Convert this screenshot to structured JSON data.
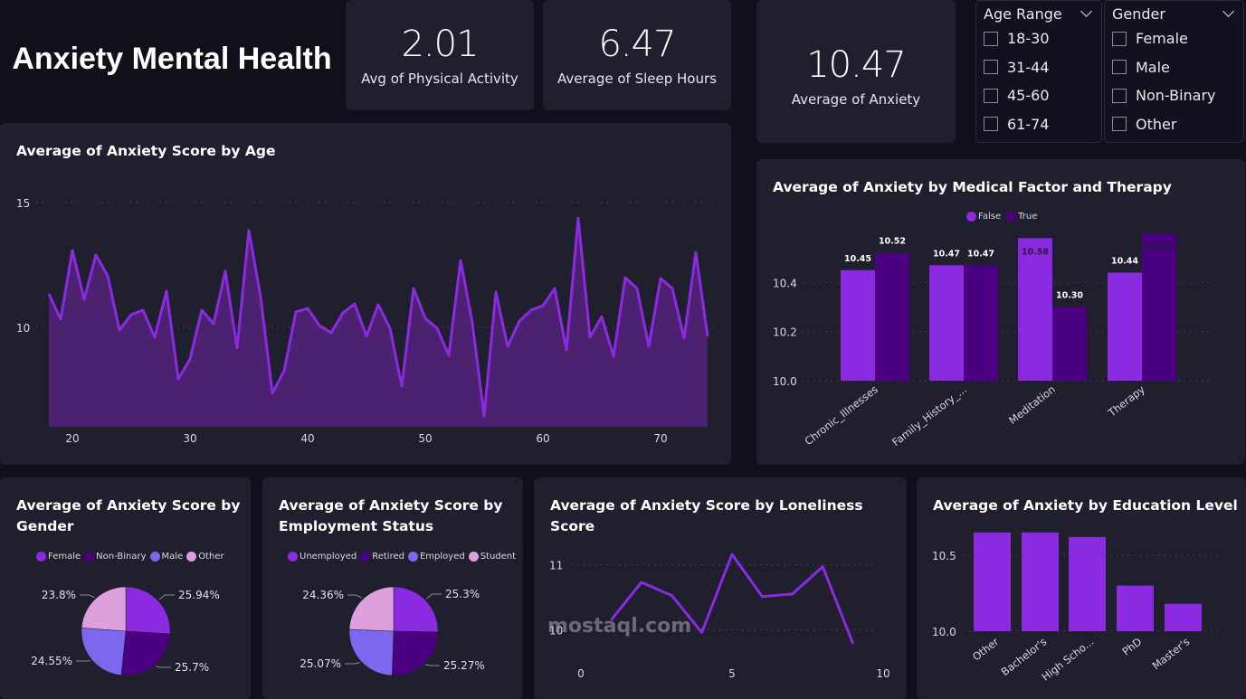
{
  "header": {
    "title": "Anxiety Mental Health"
  },
  "kpis": [
    {
      "value": "2.01",
      "label": "Avg of Physical Activity"
    },
    {
      "value": "6.47",
      "label": "Average of Sleep Hours"
    },
    {
      "value": "10.47",
      "label": "Average of Anxiety"
    }
  ],
  "slicers": {
    "age_range": {
      "title": "Age Range",
      "options": [
        "18-30",
        "31-44",
        "45-60",
        "61-74"
      ]
    },
    "gender": {
      "title": "Gender",
      "options": [
        "Female",
        "Male",
        "Non-Binary",
        "Other"
      ]
    }
  },
  "colors": {
    "purple": "#8a2be2",
    "dark_purple": "#4b0082",
    "lavender": "#7b68ee",
    "pink": "#dda0dd",
    "area_fill": "#4b2170",
    "card": "#1f1f2e",
    "bg": "#10101b"
  },
  "watermark": {
    "text": "mostaql.com"
  },
  "chart_data": [
    {
      "id": "age",
      "type": "area",
      "title": "Average of Anxiety Score by Age",
      "xlabel": "",
      "ylabel": "",
      "x_ticks": [
        "20",
        "30",
        "40",
        "50",
        "60",
        "70"
      ],
      "y_ticks": [
        "10",
        "15"
      ],
      "ylim": [
        6,
        15
      ],
      "xlim": [
        18,
        74
      ],
      "x": [
        18,
        19,
        20,
        21,
        22,
        23,
        24,
        25,
        26,
        27,
        28,
        29,
        30,
        31,
        32,
        33,
        34,
        35,
        36,
        37,
        38,
        39,
        40,
        41,
        42,
        43,
        44,
        45,
        46,
        47,
        48,
        49,
        50,
        51,
        52,
        53,
        54,
        55,
        56,
        57,
        58,
        59,
        60,
        61,
        62,
        63,
        64,
        65,
        66,
        67,
        68,
        69,
        70,
        71,
        72,
        73,
        74
      ],
      "values": [
        11.34,
        10.33,
        13.08,
        11.12,
        12.9,
        12.07,
        9.89,
        10.51,
        10.69,
        9.6,
        11.45,
        7.93,
        8.73,
        10.69,
        10.14,
        12.25,
        9.17,
        13.88,
        11.23,
        7.36,
        8.26,
        10.62,
        10.76,
        10.07,
        9.78,
        10.58,
        10.94,
        9.64,
        10.91,
        9.96,
        7.64,
        11.56,
        10.36,
        9.96,
        8.88,
        12.68,
        10.18,
        6.45,
        11.41,
        9.24,
        10.25,
        10.69,
        10.87,
        11.56,
        9.09,
        14.38,
        9.6,
        10.43,
        8.84,
        11.99,
        11.56,
        9.24,
        11.96,
        11.56,
        9.56,
        13.0,
        9.64
      ],
      "grid": true
    },
    {
      "id": "medical",
      "type": "bar",
      "title": "Average of Anxiety by Medical Factor and Therapy",
      "categories": [
        "Chronic_Illnesses",
        "Family_History_...",
        "Meditation",
        "Therapy"
      ],
      "series": [
        {
          "name": "False",
          "values": [
            10.45,
            10.47,
            10.58,
            10.44
          ],
          "labels": [
            "10.45",
            "10.47",
            "10.58",
            "10.44"
          ]
        },
        {
          "name": "True",
          "values": [
            10.52,
            10.47,
            10.3,
            10.6
          ],
          "labels": [
            "10.52",
            "10.47",
            "10.30",
            "10.60"
          ]
        }
      ],
      "y_ticks": [
        "10.0",
        "10.2",
        "10.4"
      ],
      "ylim": [
        10.0,
        10.6
      ],
      "legend": "top-center",
      "grid": true
    },
    {
      "id": "gender",
      "type": "pie",
      "title": "Average of Anxiety Score by Gender",
      "labels": [
        "Female",
        "Non-Binary",
        "Male",
        "Other"
      ],
      "values": [
        25.94,
        25.7,
        24.55,
        23.8
      ],
      "value_labels": [
        "25.94%",
        "25.7%",
        "24.55%",
        "23.8%"
      ],
      "legend": "top"
    },
    {
      "id": "employment",
      "type": "pie",
      "title": "Average of Anxiety Score by Employment Status",
      "labels": [
        "Unemployed",
        "Retired",
        "Employed",
        "Student"
      ],
      "values": [
        25.3,
        25.27,
        25.07,
        24.36
      ],
      "value_labels": [
        "25.3%",
        "25.27%",
        "25.07%",
        "24.36%"
      ],
      "legend": "top"
    },
    {
      "id": "loneliness",
      "type": "line",
      "title": "Average of Anxiety Score by Loneliness Score",
      "x": [
        1,
        2,
        3,
        4,
        5,
        6,
        7,
        8,
        9
      ],
      "values": [
        10.15,
        10.73,
        10.53,
        9.96,
        11.16,
        10.51,
        10.55,
        10.97,
        9.79
      ],
      "x_ticks": [
        "0",
        "5",
        "10"
      ],
      "y_ticks": [
        "10",
        "11"
      ],
      "xlim": [
        0,
        10
      ],
      "ylim": [
        9.5,
        11.3
      ],
      "grid": true
    },
    {
      "id": "education",
      "type": "bar",
      "title": "Average of Anxiety by Education Level",
      "categories": [
        "Other",
        "Bachelor's",
        "High Scho...",
        "PhD",
        "Master's"
      ],
      "values": [
        10.65,
        10.65,
        10.62,
        10.3,
        10.18
      ],
      "y_ticks": [
        "10.0",
        "10.5"
      ],
      "ylim": [
        10.0,
        10.7
      ],
      "grid": true
    }
  ]
}
